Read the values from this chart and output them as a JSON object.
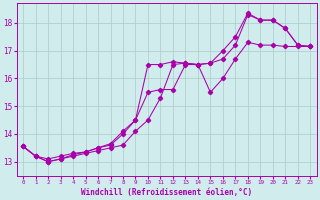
{
  "title": "",
  "xlabel": "Windchill (Refroidissement éolien,°C)",
  "ylabel": "",
  "bg_color": "#d0ecec",
  "line_color": "#aa00aa",
  "grid_color": "#b0d0d0",
  "xlim": [
    -0.5,
    23.5
  ],
  "ylim": [
    12.5,
    18.7
  ],
  "yticks": [
    13,
    14,
    15,
    16,
    17,
    18
  ],
  "xticks": [
    0,
    1,
    2,
    3,
    4,
    5,
    6,
    7,
    8,
    9,
    10,
    11,
    12,
    13,
    14,
    15,
    16,
    17,
    18,
    19,
    20,
    21,
    22,
    23
  ],
  "line1_x": [
    0,
    1,
    2,
    3,
    4,
    5,
    6,
    7,
    8,
    9,
    10,
    11,
    12,
    13,
    14,
    15,
    16,
    17,
    18,
    19,
    20,
    21,
    22,
    23
  ],
  "line1_y": [
    13.55,
    13.2,
    13.0,
    13.1,
    13.2,
    13.3,
    13.4,
    13.5,
    13.6,
    14.1,
    14.5,
    15.3,
    16.5,
    16.55,
    16.5,
    15.5,
    16.0,
    16.7,
    17.3,
    17.2,
    17.2,
    17.15,
    17.15,
    17.15
  ],
  "line2_x": [
    0,
    1,
    2,
    3,
    4,
    5,
    6,
    7,
    8,
    9,
    10,
    11,
    12,
    13,
    14,
    15,
    16,
    17,
    18,
    19,
    20,
    21,
    22,
    23
  ],
  "line2_y": [
    13.55,
    13.2,
    13.0,
    13.1,
    13.25,
    13.35,
    13.5,
    13.65,
    14.1,
    14.5,
    15.5,
    15.6,
    15.6,
    16.5,
    16.5,
    16.55,
    16.7,
    17.2,
    18.3,
    18.1,
    18.1,
    17.8,
    17.2,
    17.15
  ],
  "line3_x": [
    0,
    1,
    2,
    3,
    4,
    5,
    6,
    7,
    8,
    9,
    10,
    11,
    12,
    13,
    14,
    15,
    16,
    17,
    18,
    19,
    20,
    21,
    22,
    23
  ],
  "line3_y": [
    13.55,
    13.2,
    13.1,
    13.2,
    13.3,
    13.35,
    13.5,
    13.6,
    14.0,
    14.5,
    16.5,
    16.5,
    16.6,
    16.55,
    16.5,
    16.55,
    17.0,
    17.5,
    18.35,
    18.1,
    18.1,
    17.8,
    17.2,
    17.15
  ]
}
